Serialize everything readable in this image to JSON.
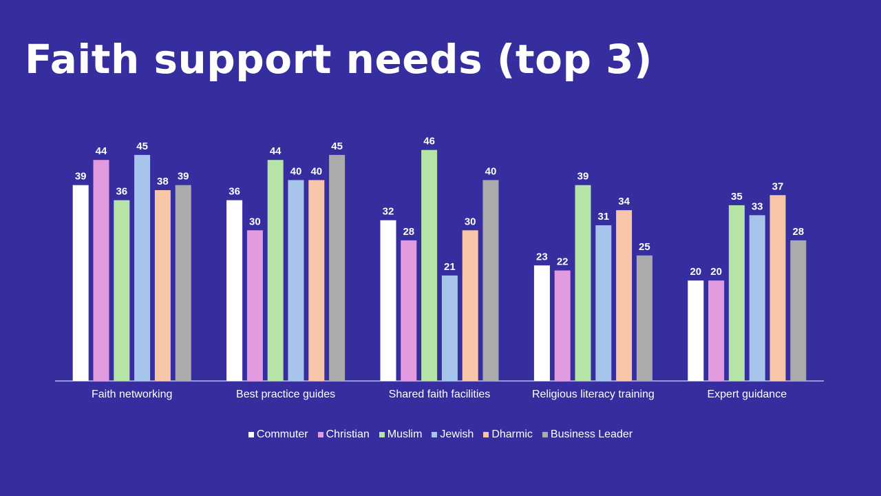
{
  "slide": {
    "title": "Faith support needs (top 3)"
  },
  "chart_data": {
    "type": "bar",
    "title": "Faith support needs (top 3)",
    "categories": [
      "Faith networking",
      "Best practice guides",
      "Shared faith facilities",
      "Religious literacy training",
      "Expert guidance"
    ],
    "series": [
      {
        "name": "Commuter",
        "color": "#ffffff",
        "values": [
          39,
          36,
          32,
          23,
          20
        ]
      },
      {
        "name": "Christian",
        "color": "#e39be0",
        "values": [
          44,
          30,
          28,
          22,
          20
        ]
      },
      {
        "name": "Muslim",
        "color": "#b6e3a6",
        "values": [
          36,
          44,
          46,
          39,
          35
        ]
      },
      {
        "name": "Jewish",
        "color": "#a7c5eb",
        "values": [
          45,
          40,
          21,
          31,
          33
        ]
      },
      {
        "name": "Dharmic",
        "color": "#f7c6a8",
        "values": [
          38,
          40,
          30,
          34,
          37
        ]
      },
      {
        "name": "Business Leader",
        "color": "#ababab",
        "values": [
          39,
          45,
          40,
          25,
          28
        ]
      }
    ],
    "ylim": [
      0,
      50
    ],
    "xlabel": "",
    "ylabel": "",
    "grid": false,
    "data_labels": true,
    "legend": "bottom"
  }
}
